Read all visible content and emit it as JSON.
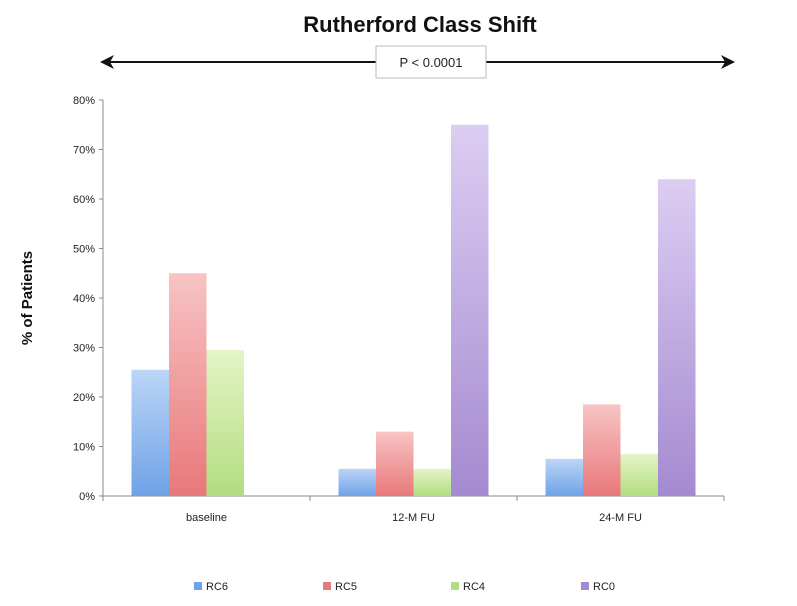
{
  "chart_data": {
    "type": "bar",
    "title": "Rutherford Class Shift",
    "ylabel": "% of Patients",
    "xlabel": "",
    "annotation": "P < 0.0001",
    "categories": [
      "baseline",
      "12-M FU",
      "24-M FU"
    ],
    "ylim": [
      0,
      80
    ],
    "yticks": [
      "0%",
      "10%",
      "20%",
      "30%",
      "40%",
      "50%",
      "60%",
      "70%",
      "80%"
    ],
    "grid": false,
    "legend_position": "bottom",
    "series": [
      {
        "name": "RC6",
        "values": [
          25.5,
          5.5,
          7.5
        ],
        "color": "#6fa2e6",
        "light": "#bcd5f7"
      },
      {
        "name": "RC5",
        "values": [
          45,
          13,
          18.5
        ],
        "color": "#e8787a",
        "light": "#f8c4c4"
      },
      {
        "name": "RC4",
        "values": [
          29.5,
          5.5,
          8.5
        ],
        "color": "#b2dd80",
        "light": "#e4f4c6"
      },
      {
        "name": "RC0",
        "values": [
          0,
          75,
          64
        ],
        "color": "#a48ad0",
        "light": "#dccdf2"
      }
    ]
  }
}
